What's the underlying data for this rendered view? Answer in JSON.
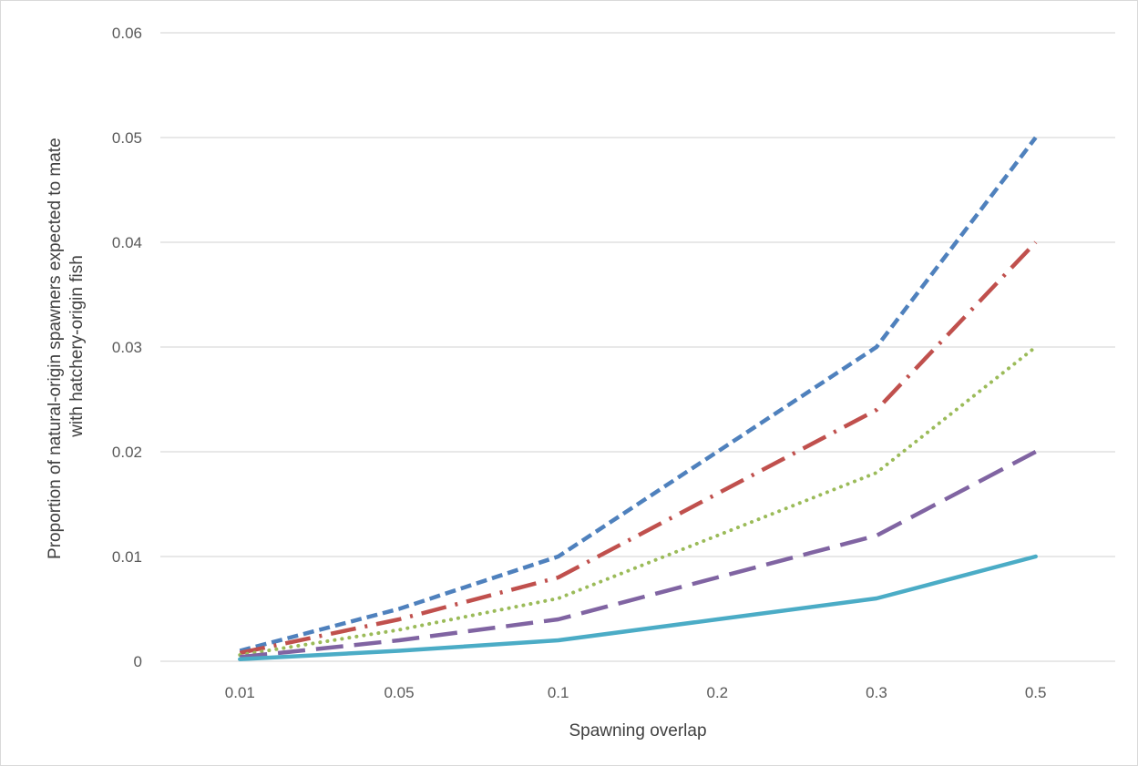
{
  "chart_data": {
    "type": "line",
    "title": "",
    "xlabel": "Spawning overlap",
    "ylabel_lines": [
      "Proportion of natural-origin spawners expected to mate",
      "with hatchery-origin fish"
    ],
    "categories": [
      "0.01",
      "0.05",
      "0.1",
      "0.2",
      "0.3",
      "0.5"
    ],
    "ylim": [
      0,
      0.06
    ],
    "yticks": [
      "0",
      "0.01",
      "0.02",
      "0.03",
      "0.04",
      "0.05",
      "0.06"
    ],
    "grid": true,
    "legend": "none",
    "series": [
      {
        "values": [
          0.001,
          0.005,
          0.01,
          0.02,
          0.03,
          0.05
        ],
        "color": "#4F81BD",
        "style": "dash"
      },
      {
        "values": [
          0.0008,
          0.004,
          0.008,
          0.016,
          0.024,
          0.04
        ],
        "color": "#C0504D",
        "style": "long-dash-dot"
      },
      {
        "values": [
          0.0006,
          0.003,
          0.006,
          0.012,
          0.018,
          0.03
        ],
        "color": "#9BBB59",
        "style": "dot"
      },
      {
        "values": [
          0.0004,
          0.002,
          0.004,
          0.008,
          0.012,
          0.02
        ],
        "color": "#8064A2",
        "style": "long-dash"
      },
      {
        "values": [
          0.0002,
          0.001,
          0.002,
          0.004,
          0.006,
          0.01
        ],
        "color": "#4BACC6",
        "style": "solid"
      }
    ]
  }
}
